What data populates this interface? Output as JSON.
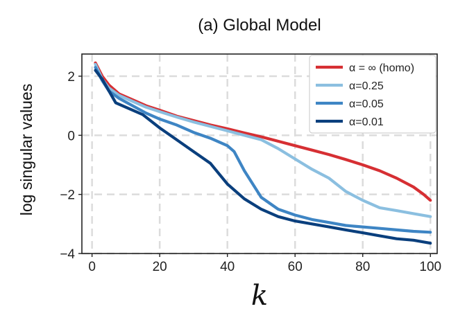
{
  "chart_data": {
    "type": "line",
    "title": "(a) Global Model",
    "xlabel": "k",
    "ylabel": "log singular values",
    "xlim": [
      -3,
      102
    ],
    "ylim": [
      -4,
      2.75
    ],
    "xticks": [
      0,
      20,
      40,
      60,
      80,
      100
    ],
    "yticks": [
      2,
      0,
      -2,
      -4
    ],
    "xtick_labels": [
      "0",
      "20",
      "40",
      "60",
      "80",
      "100"
    ],
    "ytick_labels": [
      "2",
      "0",
      "−2",
      "−4"
    ],
    "grid": true,
    "legend_position": "top-right",
    "series": [
      {
        "name": "α = ∞ (homo)",
        "color": "#d62f33",
        "x": [
          1,
          3,
          5,
          8,
          12,
          16,
          20,
          25,
          30,
          35,
          40,
          45,
          50,
          55,
          60,
          65,
          70,
          75,
          80,
          85,
          90,
          95,
          98,
          100
        ],
        "values": [
          2.45,
          2.0,
          1.7,
          1.4,
          1.2,
          1.0,
          0.85,
          0.65,
          0.5,
          0.35,
          0.22,
          0.08,
          -0.05,
          -0.2,
          -0.35,
          -0.5,
          -0.65,
          -0.82,
          -1.0,
          -1.2,
          -1.45,
          -1.75,
          -2.0,
          -2.2
        ]
      },
      {
        "name": "α=0.25",
        "color": "#8bbfe0",
        "x": [
          1,
          3,
          5,
          8,
          12,
          16,
          20,
          25,
          30,
          35,
          40,
          45,
          50,
          55,
          60,
          65,
          70,
          75,
          80,
          85,
          90,
          95,
          100
        ],
        "values": [
          2.4,
          1.9,
          1.6,
          1.35,
          1.15,
          0.95,
          0.8,
          0.62,
          0.45,
          0.3,
          0.15,
          0.0,
          -0.15,
          -0.45,
          -0.8,
          -1.15,
          -1.45,
          -1.9,
          -2.2,
          -2.45,
          -2.55,
          -2.65,
          -2.75
        ]
      },
      {
        "name": "α=0.05",
        "color": "#3e85c4",
        "x": [
          1,
          3,
          5,
          8,
          12,
          16,
          20,
          25,
          30,
          35,
          40,
          42,
          45,
          50,
          55,
          60,
          65,
          70,
          75,
          80,
          85,
          90,
          95,
          100
        ],
        "values": [
          2.3,
          1.85,
          1.5,
          1.25,
          1.0,
          0.75,
          0.55,
          0.35,
          0.1,
          -0.1,
          -0.35,
          -0.55,
          -1.2,
          -2.1,
          -2.5,
          -2.7,
          -2.85,
          -2.95,
          -3.05,
          -3.1,
          -3.15,
          -3.2,
          -3.25,
          -3.28
        ]
      },
      {
        "name": "α=0.01",
        "color": "#0a3f7d",
        "x": [
          1,
          3,
          5,
          7,
          10,
          15,
          20,
          25,
          30,
          35,
          40,
          45,
          50,
          55,
          60,
          65,
          70,
          75,
          80,
          85,
          90,
          95,
          100
        ],
        "values": [
          2.2,
          1.9,
          1.5,
          1.1,
          0.95,
          0.7,
          0.25,
          -0.15,
          -0.55,
          -0.95,
          -1.65,
          -2.15,
          -2.5,
          -2.75,
          -2.9,
          -3.0,
          -3.1,
          -3.2,
          -3.3,
          -3.4,
          -3.5,
          -3.55,
          -3.65
        ]
      }
    ]
  }
}
